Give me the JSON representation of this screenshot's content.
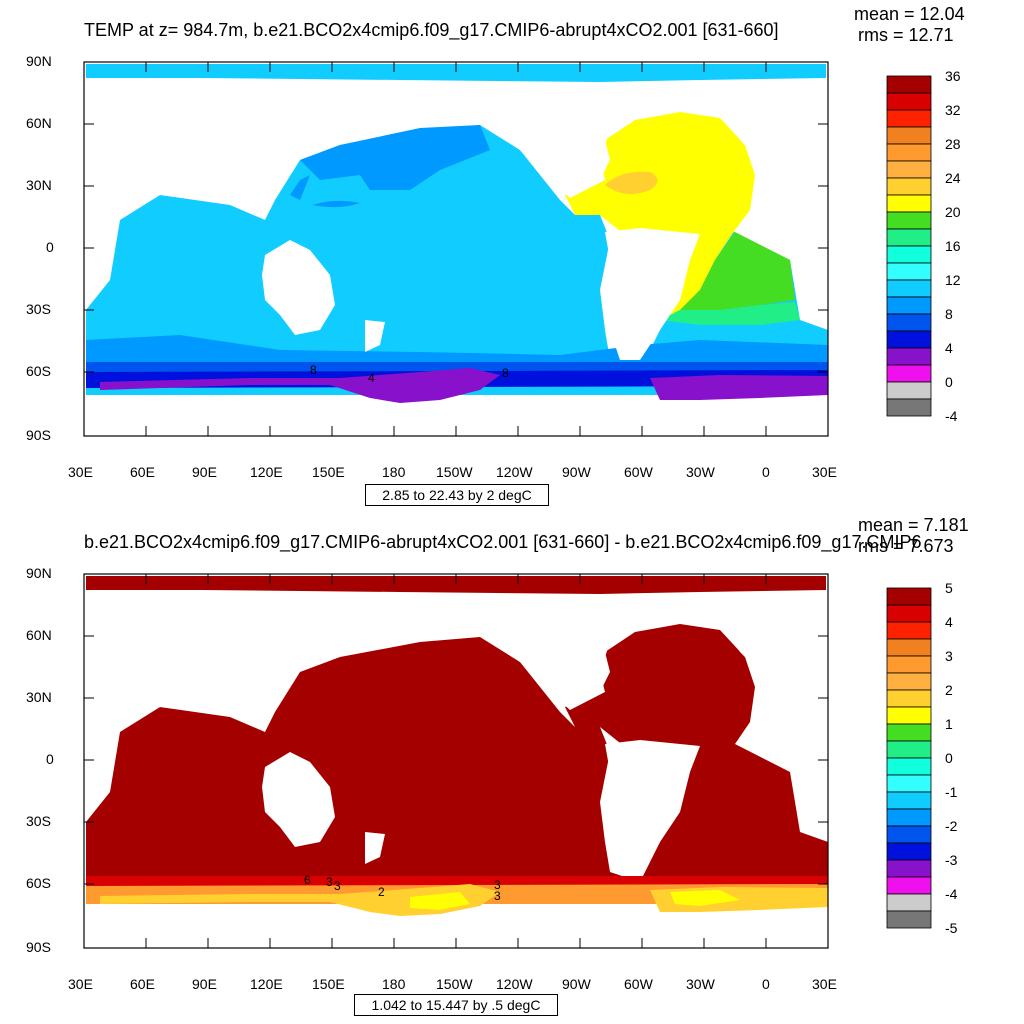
{
  "panels": [
    {
      "title": "TEMP at z= 984.7m, b.e21.BCO2x4cmip6.f09_g17.CMIP6-abrupt4xCO2.001 [631-660]",
      "mean_label": "mean = 12.04",
      "rms_label": "rms = 12.71",
      "info": "2.85 to 22.43 by 2 degC",
      "lat_labels": [
        "90N",
        "60N",
        "30N",
        "0",
        "30S",
        "60S",
        "90S"
      ],
      "lon_labels": [
        "30E",
        "60E",
        "90E",
        "120E",
        "150E",
        "180",
        "150W",
        "120W",
        "90W",
        "60W",
        "30W",
        "0",
        "30E"
      ],
      "colorbar": {
        "labels": [
          "36",
          "32",
          "28",
          "24",
          "20",
          "16",
          "12",
          "8",
          "4",
          "0",
          "-4"
        ],
        "colors": [
          "#a50000",
          "#d80000",
          "#ff2200",
          "#f08020",
          "#ff9a30",
          "#ffb040",
          "#ffd030",
          "#ffff00",
          "#44dd22",
          "#22ee88",
          "#11ffdd",
          "#33ffff",
          "#11ccff",
          "#0099ff",
          "#0055ee",
          "#0011dd",
          "#8811cc",
          "#ee11ee",
          "#cccccc",
          "#777777"
        ]
      },
      "contour_labels": [
        "8",
        "4",
        "8"
      ],
      "colors": {
        "ocean_main": "#11ccff",
        "ocean_cool": "#0099ff",
        "atlantic_warm": "#ffff00",
        "atlantic_warmer": "#ffd030",
        "south_atlantic": "#44dd22",
        "south_green": "#22ee88",
        "so_band1": "#0055ee",
        "so_band2": "#0011dd",
        "so_band3": "#8811cc",
        "arctic": "#33ffff"
      }
    },
    {
      "title": "b.e21.BCO2x4cmip6.f09_g17.CMIP6-abrupt4xCO2.001 [631-660] - b.e21.BCO2x4cmip6.f09_g17.CMIP6",
      "mean_label": "mean = 7.181",
      "rms_label": "rms = 7.673",
      "info": "1.042 to 15.447 by .5 degC",
      "lat_labels": [
        "90N",
        "60N",
        "30N",
        "0",
        "30S",
        "60S",
        "90S"
      ],
      "lon_labels": [
        "30E",
        "60E",
        "90E",
        "120E",
        "150E",
        "180",
        "150W",
        "120W",
        "90W",
        "60W",
        "30W",
        "0",
        "30E"
      ],
      "colorbar": {
        "labels": [
          "5",
          "4",
          "3",
          "2",
          "1",
          "0",
          "-1",
          "-2",
          "-3",
          "-4",
          "-5"
        ],
        "colors": [
          "#a50000",
          "#d80000",
          "#ff2200",
          "#f08020",
          "#ff9a30",
          "#ffb040",
          "#ffd030",
          "#ffff00",
          "#44dd22",
          "#22ee88",
          "#11ffdd",
          "#33ffff",
          "#11ccff",
          "#0099ff",
          "#0055ee",
          "#0011dd",
          "#8811cc",
          "#ee11ee",
          "#cccccc",
          "#777777"
        ]
      },
      "contour_labels": [
        "6",
        "3",
        "3",
        "2",
        "3",
        "3"
      ],
      "colors": {
        "ocean_main": "#a50000",
        "so_band1": "#d80000",
        "so_band2": "#ff9a30",
        "so_band3": "#ffd030",
        "so_band4": "#ffff00"
      }
    }
  ]
}
